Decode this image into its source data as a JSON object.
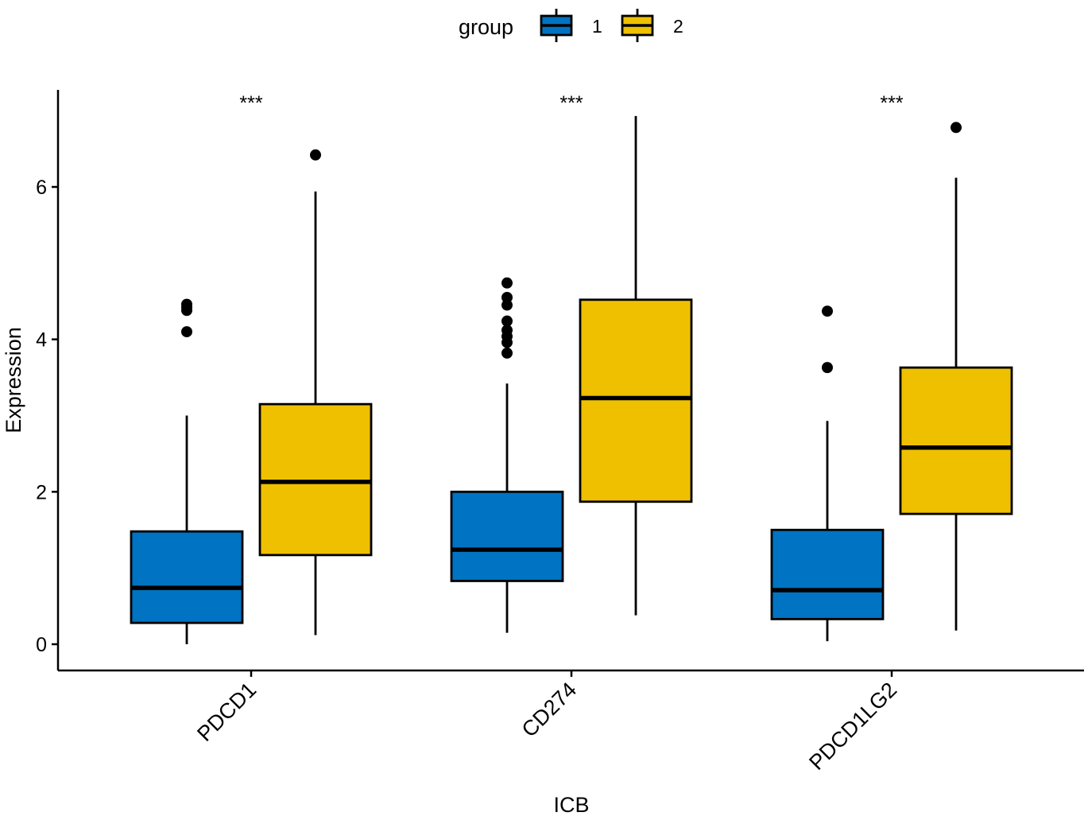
{
  "chart_data": {
    "type": "boxplot",
    "title": "",
    "xlabel": "ICB",
    "ylabel": "Expression",
    "ylim": [
      -0.35,
      7.25
    ],
    "yticks": [
      0,
      2,
      4,
      6
    ],
    "categories": [
      "PDCD1",
      "CD274",
      "PDCD1LG2"
    ],
    "legend": {
      "title": "group",
      "position": "top",
      "entries": [
        {
          "label": "1",
          "color": "#0073C2"
        },
        {
          "label": "2",
          "color": "#EFC000"
        }
      ]
    },
    "significance": [
      "***",
      "***",
      "***"
    ],
    "series": [
      {
        "name": "1",
        "color": "#0073C2",
        "boxes": [
          {
            "category": "PDCD1",
            "whisker_low": 0.0,
            "q1": 0.28,
            "median": 0.74,
            "q3": 1.48,
            "whisker_high": 3.0,
            "outliers": [
              4.1,
              4.38,
              4.42,
              4.46
            ]
          },
          {
            "category": "CD274",
            "whisker_low": 0.15,
            "q1": 0.83,
            "median": 1.24,
            "q3": 2.0,
            "whisker_high": 3.42,
            "outliers": [
              3.82,
              3.96,
              4.04,
              4.12,
              4.24,
              4.45,
              4.55,
              4.74
            ]
          },
          {
            "category": "PDCD1LG2",
            "whisker_low": 0.04,
            "q1": 0.33,
            "median": 0.71,
            "q3": 1.5,
            "whisker_high": 2.93,
            "outliers": [
              3.63,
              4.37
            ]
          }
        ]
      },
      {
        "name": "2",
        "color": "#EFC000",
        "boxes": [
          {
            "category": "PDCD1",
            "whisker_low": 0.12,
            "q1": 1.17,
            "median": 2.13,
            "q3": 3.15,
            "whisker_high": 5.94,
            "outliers": [
              6.42
            ]
          },
          {
            "category": "CD274",
            "whisker_low": 0.38,
            "q1": 1.87,
            "median": 3.23,
            "q3": 4.52,
            "whisker_high": 6.93,
            "outliers": []
          },
          {
            "category": "PDCD1LG2",
            "whisker_low": 0.18,
            "q1": 1.71,
            "median": 2.58,
            "q3": 3.63,
            "whisker_high": 6.12,
            "outliers": [
              6.78
            ]
          }
        ]
      }
    ]
  }
}
